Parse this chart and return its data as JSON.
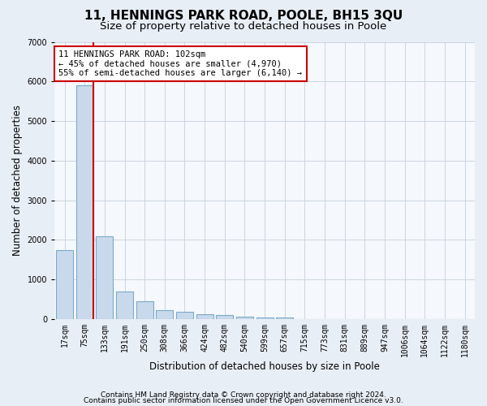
{
  "title": "11, HENNINGS PARK ROAD, POOLE, BH15 3QU",
  "subtitle": "Size of property relative to detached houses in Poole",
  "xlabel": "Distribution of detached houses by size in Poole",
  "ylabel": "Number of detached properties",
  "categories": [
    "17sqm",
    "75sqm",
    "133sqm",
    "191sqm",
    "250sqm",
    "308sqm",
    "366sqm",
    "424sqm",
    "482sqm",
    "540sqm",
    "599sqm",
    "657sqm",
    "715sqm",
    "773sqm",
    "831sqm",
    "889sqm",
    "947sqm",
    "1006sqm",
    "1064sqm",
    "1122sqm",
    "1180sqm"
  ],
  "values": [
    1750,
    5900,
    2100,
    700,
    450,
    230,
    190,
    120,
    100,
    65,
    50,
    40,
    5,
    3,
    2,
    2,
    1,
    1,
    1,
    1,
    0
  ],
  "bar_color": "#c9d9ec",
  "bar_edge_color": "#7aaac8",
  "vline_color": "#cc0000",
  "vline_x_index": 1,
  "ylim": [
    0,
    7000
  ],
  "yticks": [
    0,
    1000,
    2000,
    3000,
    4000,
    5000,
    6000,
    7000
  ],
  "annotation_text": "11 HENNINGS PARK ROAD: 102sqm\n← 45% of detached houses are smaller (4,970)\n55% of semi-detached houses are larger (6,140) →",
  "annotation_box_facecolor": "#ffffff",
  "annotation_box_edgecolor": "#cc0000",
  "footer1": "Contains HM Land Registry data © Crown copyright and database right 2024.",
  "footer2": "Contains public sector information licensed under the Open Government Licence v3.0.",
  "background_color": "#e8eef5",
  "plot_bg_color": "#f5f8fc",
  "title_fontsize": 11,
  "subtitle_fontsize": 9.5,
  "tick_fontsize": 7,
  "label_fontsize": 8.5,
  "footer_fontsize": 6.5,
  "annotation_fontsize": 7.5
}
